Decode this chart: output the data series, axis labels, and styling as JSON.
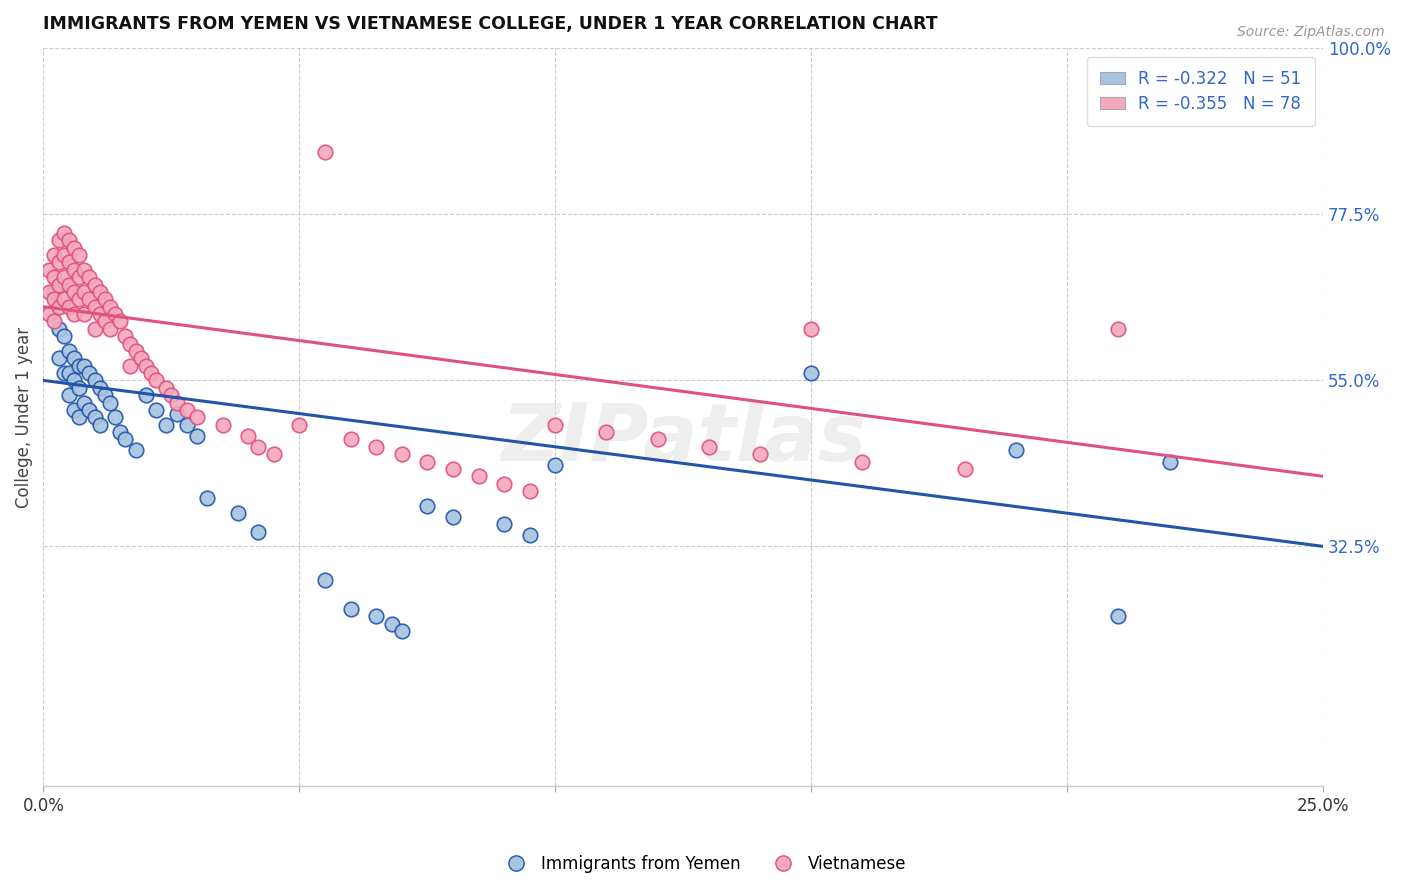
{
  "title": "IMMIGRANTS FROM YEMEN VS VIETNAMESE COLLEGE, UNDER 1 YEAR CORRELATION CHART",
  "source": "Source: ZipAtlas.com",
  "ylabel": "College, Under 1 year",
  "xlim": [
    0.0,
    0.25
  ],
  "ylim": [
    0.0,
    1.0
  ],
  "xticks": [
    0.0,
    0.05,
    0.1,
    0.15,
    0.2,
    0.25
  ],
  "xticklabels": [
    "0.0%",
    "",
    "",
    "",
    "",
    "25.0%"
  ],
  "yticks": [
    0.0,
    0.325,
    0.55,
    0.775,
    1.0
  ],
  "yticklabels": [
    "",
    "32.5%",
    "55.0%",
    "77.5%",
    "100.0%"
  ],
  "legend_r_blue": "R = -0.322",
  "legend_n_blue": "N = 51",
  "legend_r_pink": "R = -0.355",
  "legend_n_pink": "N = 78",
  "legend_label_blue": "Immigrants from Yemen",
  "legend_label_pink": "Vietnamese",
  "blue_color": "#a8c4e0",
  "pink_color": "#f4a8bc",
  "blue_line_color": "#2255aa",
  "pink_line_color": "#e05080",
  "watermark": "ZIPatlas",
  "blue_line_x": [
    0.0,
    0.25
  ],
  "blue_line_y": [
    0.55,
    0.325
  ],
  "pink_line_x": [
    0.0,
    0.25
  ],
  "pink_line_y": [
    0.65,
    0.42
  ],
  "blue_x": [
    0.002,
    0.003,
    0.003,
    0.004,
    0.004,
    0.005,
    0.005,
    0.005,
    0.006,
    0.006,
    0.006,
    0.007,
    0.007,
    0.007,
    0.008,
    0.008,
    0.009,
    0.009,
    0.01,
    0.01,
    0.011,
    0.011,
    0.012,
    0.013,
    0.014,
    0.015,
    0.016,
    0.018,
    0.02,
    0.022,
    0.024,
    0.026,
    0.028,
    0.03,
    0.032,
    0.038,
    0.042,
    0.055,
    0.06,
    0.065,
    0.068,
    0.07,
    0.075,
    0.08,
    0.09,
    0.095,
    0.1,
    0.15,
    0.19,
    0.21,
    0.22
  ],
  "blue_y": [
    0.67,
    0.62,
    0.58,
    0.61,
    0.56,
    0.59,
    0.56,
    0.53,
    0.58,
    0.55,
    0.51,
    0.57,
    0.54,
    0.5,
    0.57,
    0.52,
    0.56,
    0.51,
    0.55,
    0.5,
    0.54,
    0.49,
    0.53,
    0.52,
    0.5,
    0.48,
    0.47,
    0.455,
    0.53,
    0.51,
    0.49,
    0.505,
    0.49,
    0.475,
    0.39,
    0.37,
    0.345,
    0.28,
    0.24,
    0.23,
    0.22,
    0.21,
    0.38,
    0.365,
    0.355,
    0.34,
    0.435,
    0.56,
    0.455,
    0.23,
    0.44
  ],
  "pink_x": [
    0.001,
    0.001,
    0.001,
    0.002,
    0.002,
    0.002,
    0.002,
    0.003,
    0.003,
    0.003,
    0.003,
    0.004,
    0.004,
    0.004,
    0.004,
    0.005,
    0.005,
    0.005,
    0.005,
    0.006,
    0.006,
    0.006,
    0.006,
    0.007,
    0.007,
    0.007,
    0.008,
    0.008,
    0.008,
    0.009,
    0.009,
    0.01,
    0.01,
    0.01,
    0.011,
    0.011,
    0.012,
    0.012,
    0.013,
    0.013,
    0.014,
    0.015,
    0.016,
    0.017,
    0.017,
    0.018,
    0.019,
    0.02,
    0.021,
    0.022,
    0.024,
    0.025,
    0.026,
    0.028,
    0.03,
    0.035,
    0.04,
    0.042,
    0.045,
    0.05,
    0.055,
    0.06,
    0.065,
    0.07,
    0.075,
    0.08,
    0.085,
    0.09,
    0.095,
    0.1,
    0.11,
    0.12,
    0.13,
    0.14,
    0.15,
    0.16,
    0.18,
    0.21
  ],
  "pink_y": [
    0.7,
    0.67,
    0.64,
    0.72,
    0.69,
    0.66,
    0.63,
    0.74,
    0.71,
    0.68,
    0.65,
    0.75,
    0.72,
    0.69,
    0.66,
    0.74,
    0.71,
    0.68,
    0.65,
    0.73,
    0.7,
    0.67,
    0.64,
    0.72,
    0.69,
    0.66,
    0.7,
    0.67,
    0.64,
    0.69,
    0.66,
    0.68,
    0.65,
    0.62,
    0.67,
    0.64,
    0.66,
    0.63,
    0.65,
    0.62,
    0.64,
    0.63,
    0.61,
    0.6,
    0.57,
    0.59,
    0.58,
    0.57,
    0.56,
    0.55,
    0.54,
    0.53,
    0.52,
    0.51,
    0.5,
    0.49,
    0.475,
    0.46,
    0.45,
    0.49,
    0.86,
    0.47,
    0.46,
    0.45,
    0.44,
    0.43,
    0.42,
    0.41,
    0.4,
    0.49,
    0.48,
    0.47,
    0.46,
    0.45,
    0.62,
    0.44,
    0.43,
    0.62
  ]
}
